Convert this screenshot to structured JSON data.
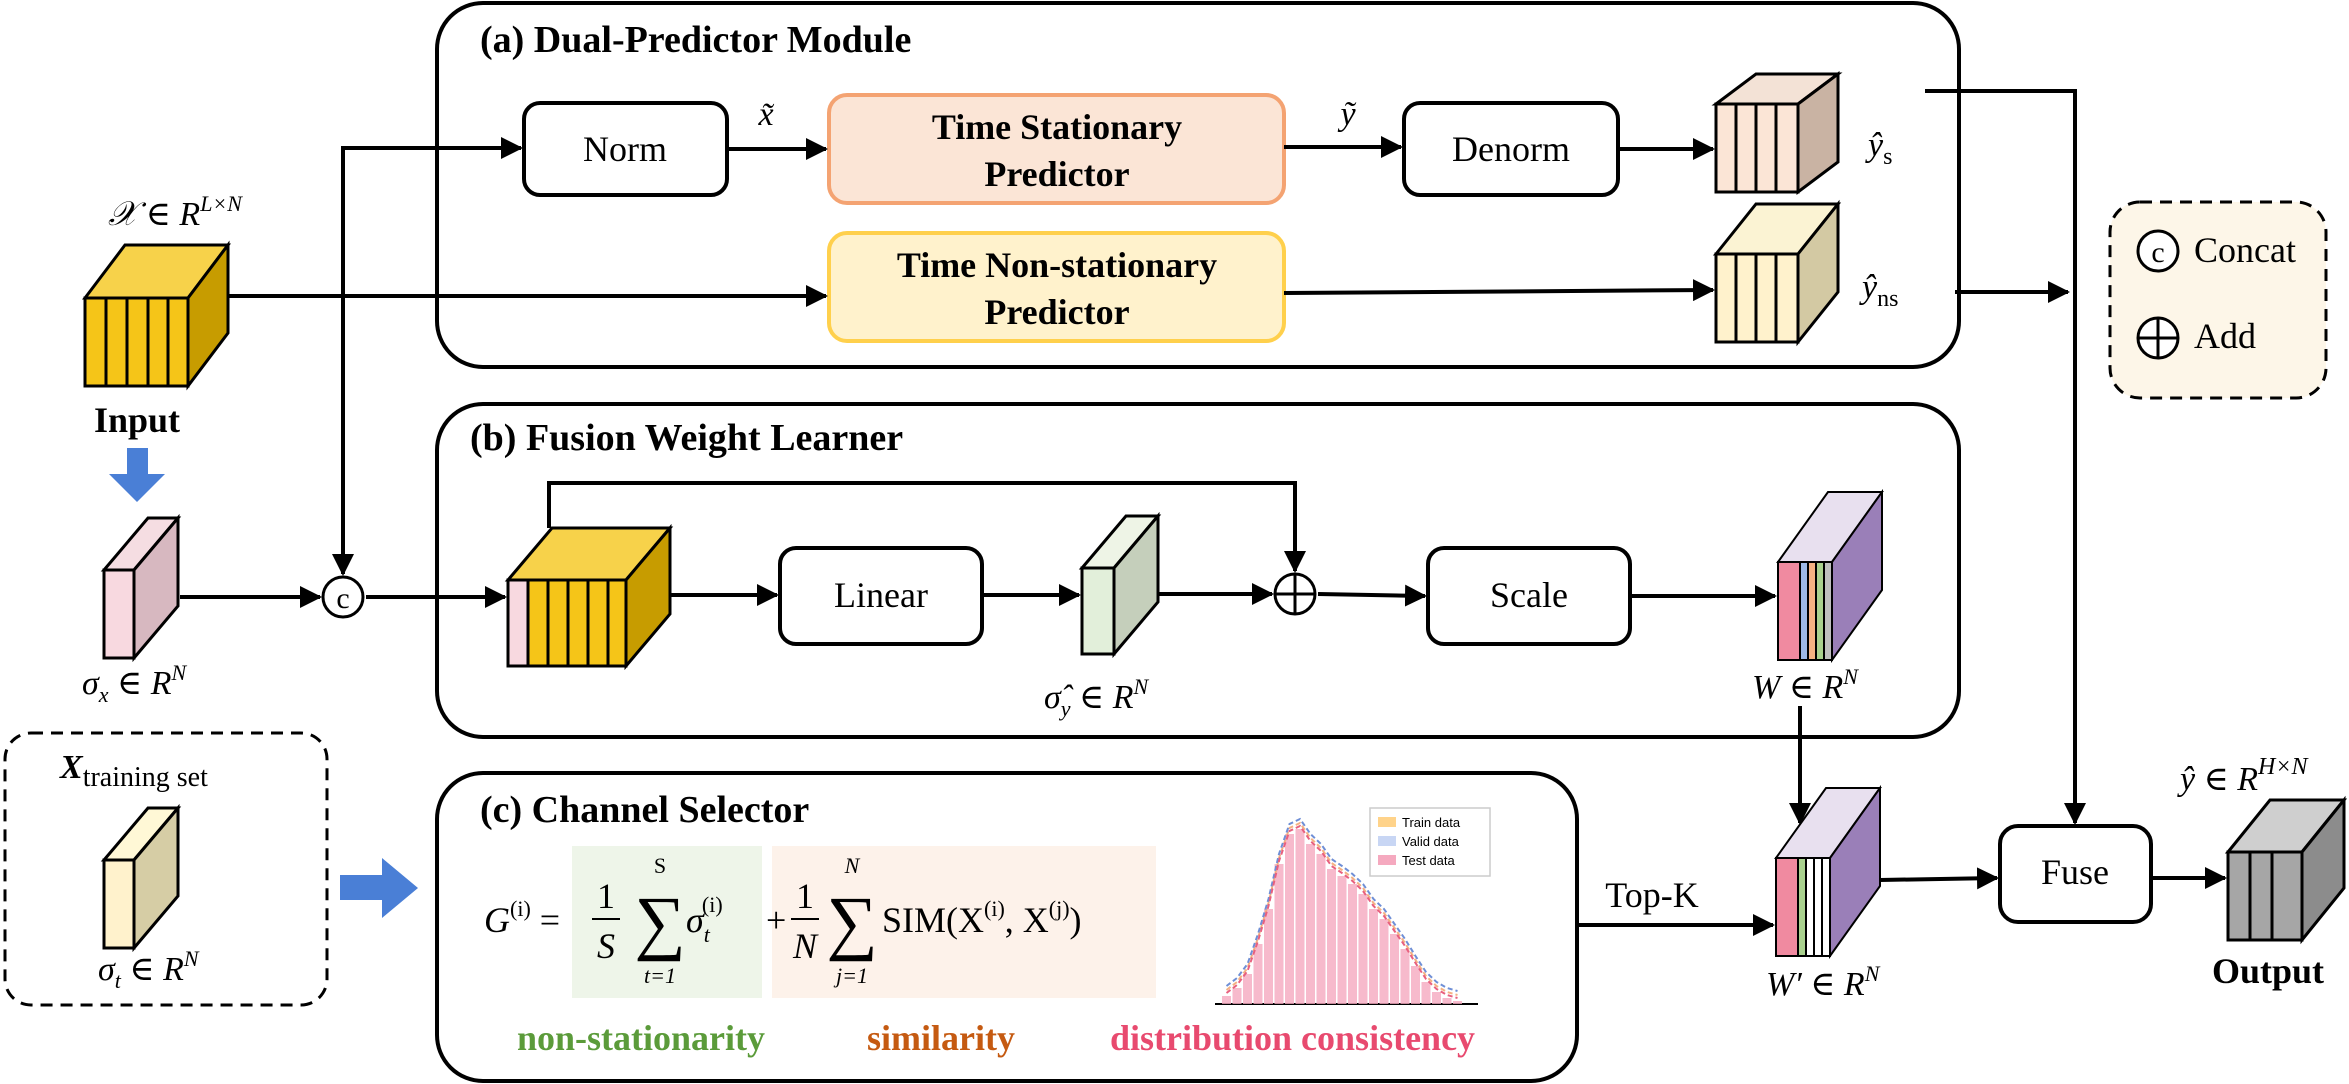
{
  "modules": {
    "a_title": "(a) Dual-Predictor Module",
    "b_title": "(b) Fusion Weight Learner",
    "c_title": "(c) Channel Selector"
  },
  "boxes": {
    "norm": "Norm",
    "stationary_line1": "Time Stationary",
    "stationary_line2": "Predictor",
    "nonstationary_line1": "Time Non-stationary",
    "nonstationary_line2": "Predictor",
    "denorm": "Denorm",
    "linear": "Linear",
    "scale": "Scale",
    "fuse": "Fuse"
  },
  "labels": {
    "input_dim": "𝒳 ∈ R",
    "input_dim_sup": "L×N",
    "input": "Input",
    "x_tilde": "x̃",
    "y_tilde": "ỹ",
    "y_s": "ŷ",
    "y_s_sub": "s",
    "y_ns": "ŷ",
    "y_ns_sub": "ns",
    "sigma_x": "σ",
    "sigma_x_sub": "x",
    "sigma_x_dim": " ∈ R",
    "sigma_x_sup": "N",
    "sigma_y": "σ̂",
    "sigma_y_sub": "y",
    "sigma_y_dim": " ∈ R",
    "sigma_y_sup": "N",
    "w": "W ∈ R",
    "w_sup": "N",
    "w_prime": "W′ ∈ R",
    "w_prime_sup": "N",
    "training_x": "X",
    "training_sub": "training set",
    "sigma_t": "σ",
    "sigma_t_sub": "t",
    "sigma_t_dim": " ∈ R",
    "sigma_t_sup": "N",
    "topk": "Top-K",
    "output_dim": "ŷ ∈ R",
    "output_dim_sup": "H×N",
    "output": "Output"
  },
  "legend": {
    "concat_symbol": "c",
    "concat": "Concat",
    "add_symbol": "⊕",
    "add": "Add"
  },
  "formula": {
    "lhs": "G",
    "lhs_sup": "(i)",
    "eq": " =",
    "frac1_num": "1",
    "frac1_den": "S",
    "sum1_top": "S",
    "sum1_bottom": "t=1",
    "term1": "σ",
    "term1_sub": "t",
    "term1_sup": "(i)",
    "plus": "+",
    "frac2_num": "1",
    "frac2_den": "N",
    "sum2_top": "N",
    "sum2_bottom": "j=1",
    "term2": "SIM(X",
    "term2_sup1": "(i)",
    "term2_mid": ", X",
    "term2_sup2": "(j)",
    "term2_end": ")"
  },
  "criteria": {
    "nonstationarity": "non-stationarity",
    "similarity": "similarity",
    "distribution": "distribution consistency"
  },
  "histogram_legend": [
    "Train data",
    "Valid data",
    "Test data"
  ],
  "colors": {
    "stationary_fill": "#fbe5d6",
    "stationary_border": "#f4a372",
    "nonstationary_fill": "#fff2cc",
    "nonstationary_border": "#ffd04c",
    "input_front": "#f5c518",
    "input_side": "#c79c00",
    "nonstationarity_text": "#5b9b3a",
    "similarity_text": "#c55a11",
    "distribution_text": "#e84a6f",
    "blue_arrow": "#4a7fd6",
    "legend_fill": "#fdf6e8"
  }
}
